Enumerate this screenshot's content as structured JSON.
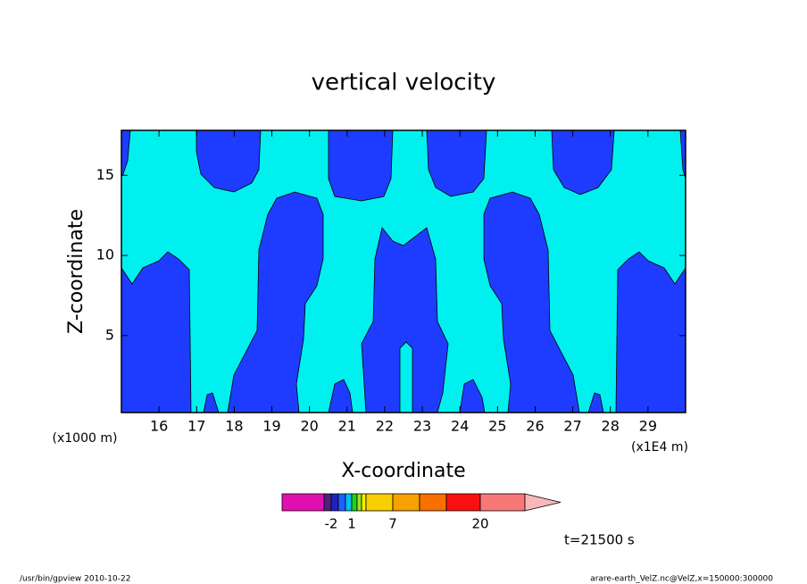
{
  "chart_data": {
    "type": "contour",
    "title": "vertical velocity",
    "xlabel": "X-coordinate",
    "ylabel": "Z-coordinate",
    "x_unit_left": "(x1000 m)",
    "x_unit_right": "(x1E4 m)",
    "xlim": [
      15,
      30
    ],
    "xticks": [
      16,
      17,
      18,
      19,
      20,
      21,
      22,
      23,
      24,
      25,
      26,
      27,
      28,
      29
    ],
    "ylim": [
      0.2,
      17.8
    ],
    "yticks": [
      5,
      10,
      15
    ],
    "fill_colors": [
      "#00f0f0",
      "#1e3cff"
    ],
    "colorbar": {
      "colors": [
        "#e010b0",
        "#502080",
        "#2020c0",
        "#2060ff",
        "#00c0f0",
        "#20d020",
        "#a0e020",
        "#f0f000",
        "#f8d000",
        "#f8a000",
        "#f87000",
        "#f81010",
        "#f87878",
        "#f8b8b8"
      ],
      "ticks": [
        -2,
        1,
        7,
        20
      ]
    },
    "time": "t=21500 s",
    "footer_left": "/usr/bin/gpview  2010-10-22",
    "footer_right": "arare-earth_VelZ.nc@VelZ,x=150000:300000"
  }
}
